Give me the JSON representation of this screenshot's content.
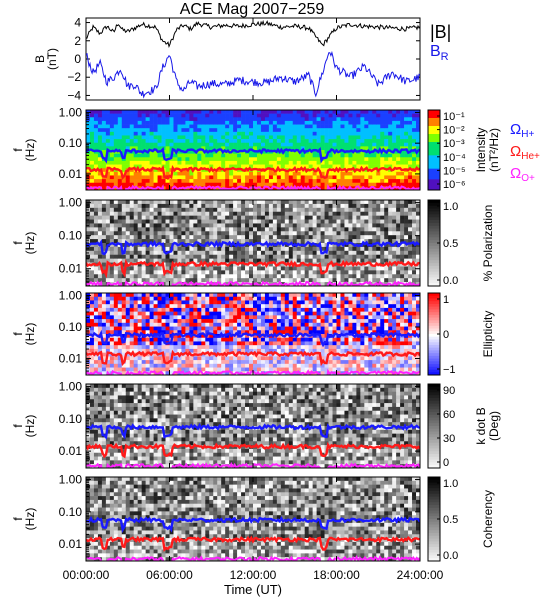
{
  "chart_data": [
    {
      "type": "line",
      "title": "ACE Mag 2007−259",
      "ylabel": "B",
      "yunit": "(nT)",
      "ylim": [
        -4.5,
        4.5
      ],
      "yticks": [
        "4",
        "2",
        "0",
        "−2",
        "−4"
      ],
      "yticks_values": [
        4,
        2,
        0,
        -2,
        -4
      ],
      "series": [
        {
          "name": "|B|",
          "color": "#000000",
          "x_hours": [
            0,
            0.5,
            1,
            1.5,
            2,
            2.3,
            2.6,
            3,
            3.5,
            4,
            5,
            5.5,
            6,
            6.5,
            7,
            7.5,
            8,
            9,
            10,
            11,
            12,
            13,
            14,
            15,
            16,
            17,
            17.5,
            18,
            19,
            20,
            21,
            22,
            23,
            24
          ],
          "values": [
            2.2,
            3.5,
            2.8,
            3.6,
            2.9,
            4.0,
            3.2,
            3.0,
            3.4,
            3.8,
            3.5,
            2.0,
            1.5,
            3.2,
            3.7,
            3.3,
            3.9,
            3.5,
            3.7,
            3.6,
            3.8,
            3.9,
            3.5,
            3.6,
            3.4,
            1.5,
            2.5,
            3.4,
            3.8,
            3.6,
            3.5,
            3.4,
            3.3,
            3.5
          ]
        },
        {
          "name": "B",
          "subscript": "R",
          "color": "#1818e8",
          "x_hours": [
            0,
            0.5,
            1,
            1.5,
            2,
            2.5,
            3,
            3.5,
            4,
            5,
            5.5,
            6,
            6.5,
            7,
            7.5,
            8,
            9,
            10,
            11,
            12,
            13,
            14,
            15,
            16,
            16.5,
            17,
            17.5,
            18,
            19,
            20,
            21,
            22,
            23,
            24
          ],
          "values": [
            0.5,
            -1.5,
            -0.5,
            -2.5,
            -2.0,
            -1.0,
            -3.0,
            -2.8,
            -3.8,
            -3.3,
            -1.0,
            0.5,
            -2.5,
            -3.5,
            -2.5,
            -3.0,
            -2.7,
            -2.8,
            -2.3,
            -2.5,
            -2.6,
            -2.0,
            -2.5,
            -1.8,
            -3.8,
            -1.5,
            1.0,
            -1.0,
            -2.0,
            -0.8,
            -2.8,
            -1.5,
            -2.5,
            -2.0
          ]
        }
      ]
    },
    {
      "type": "heatmap",
      "ylabel": "f",
      "yunit": "(Hz)",
      "yticks": [
        "1.00",
        "0.10",
        "0.01"
      ],
      "ylim": [
        0.003,
        1.2
      ],
      "colorbar_label": "Intensity",
      "colorbar_unit": "(nT²/Hz)",
      "colorbar_ticks": [
        "10⁻¹",
        "10⁻²",
        "10⁻³",
        "10⁻⁴",
        "10⁻⁵",
        "10⁻⁶"
      ],
      "colorbar_scale": "rainbow"
    },
    {
      "type": "heatmap",
      "ylabel": "f",
      "yunit": "(Hz)",
      "yticks": [
        "1.00",
        "0.10",
        "0.01"
      ],
      "colorbar_label": "% Polarization",
      "colorbar_ticks": [
        "1.0",
        "0.5",
        "0.0"
      ],
      "colorbar_scale": "grayscale"
    },
    {
      "type": "heatmap",
      "ylabel": "f",
      "yunit": "(Hz)",
      "yticks": [
        "1.00",
        "0.10",
        "0.01"
      ],
      "colorbar_label": "Ellipticity",
      "colorbar_ticks": [
        "1",
        "0",
        "−1"
      ],
      "colorbar_scale": "red-white-blue"
    },
    {
      "type": "heatmap",
      "ylabel": "f",
      "yunit": "(Hz)",
      "yticks": [
        "1.00",
        "0.10",
        "0.01"
      ],
      "colorbar_label": "k dot B",
      "colorbar_unit": "(Deg)",
      "colorbar_ticks": [
        "90",
        "60",
        "30",
        "0"
      ],
      "colorbar_scale": "grayscale"
    },
    {
      "type": "heatmap",
      "ylabel": "f",
      "yunit": "(Hz)",
      "yticks": [
        "1.00",
        "0.10",
        "0.01"
      ],
      "colorbar_label": "Coherency",
      "colorbar_ticks": [
        "1.0",
        "0.5",
        "0.0"
      ],
      "colorbar_scale": "grayscale"
    }
  ],
  "gyro_lines": [
    {
      "name": "Ω",
      "subscript": "H+",
      "color": "#1a1aff",
      "freq_hz": 0.056
    },
    {
      "name": "Ω",
      "subscript": "He+",
      "color": "#ff1a1a",
      "freq_hz": 0.014
    },
    {
      "name": "Ω",
      "subscript": "O+",
      "color": "#ff22ff",
      "freq_hz": 0.0035
    }
  ],
  "xaxis": {
    "label": "Time (UT)",
    "ticks": [
      "00:00:00",
      "06:00:00",
      "12:00:00",
      "18:00:00",
      "24:00:00"
    ],
    "ticks_hours": [
      0,
      6,
      12,
      18,
      24
    ]
  },
  "colors": {
    "bmag": "#000000",
    "br": "#1818e8",
    "h_plus": "#1a1aff",
    "he_plus": "#ff1a1a",
    "o_plus": "#ff22ff"
  }
}
